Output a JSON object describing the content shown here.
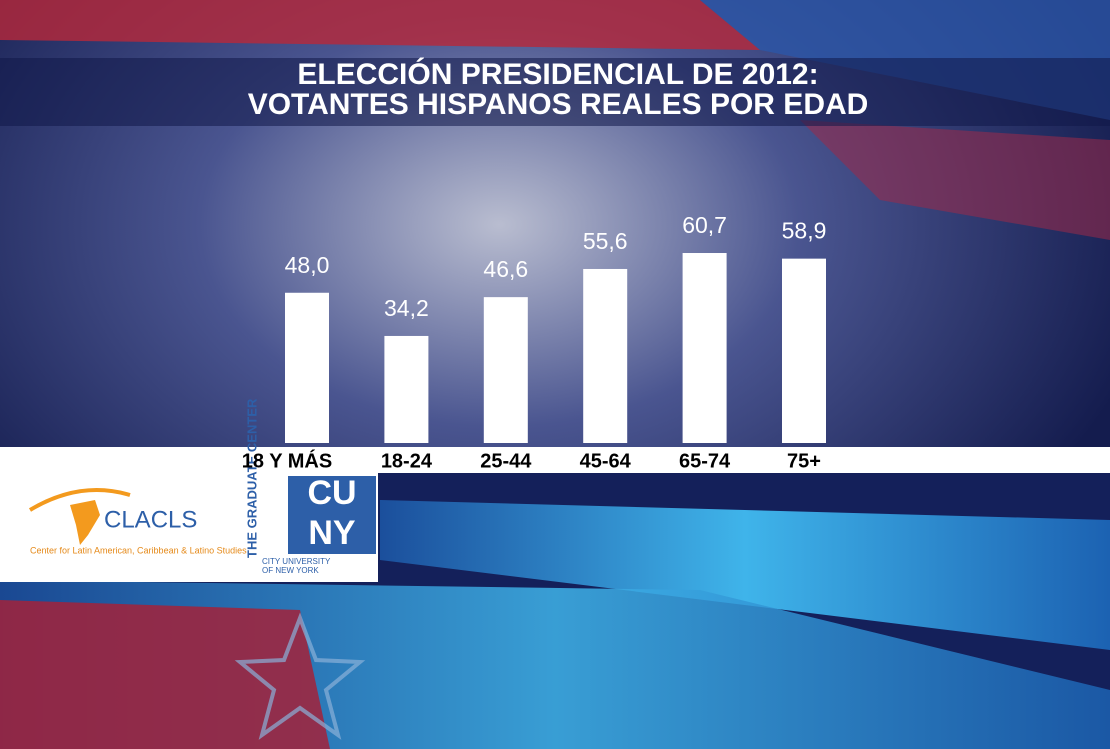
{
  "chart_data": {
    "type": "bar",
    "title": "ELECCIÓN PRESIDENCIAL DE 2012:",
    "subtitle": "VOTANTES HISPANOS REALES POR EDAD",
    "categories": [
      "18 Y MÁS",
      "18-24",
      "25-44",
      "45-64",
      "65-74",
      "75+"
    ],
    "values": [
      48.0,
      34.2,
      46.6,
      55.6,
      60.7,
      58.9
    ],
    "value_labels": [
      "48,0",
      "34,2",
      "46,6",
      "55,6",
      "60,7",
      "58,9"
    ],
    "color": "#ffffff"
  },
  "logos": {
    "clacls": "CLACLS",
    "clacls_full": "Center for Latin American, Caribbean & Latino Studies",
    "graduate_center": "THE GRADUATE CENTER",
    "cuny_top": "CU",
    "cuny_bottom": "NY",
    "city_university": "CITY UNIVERSITY OF NEW YORK"
  }
}
